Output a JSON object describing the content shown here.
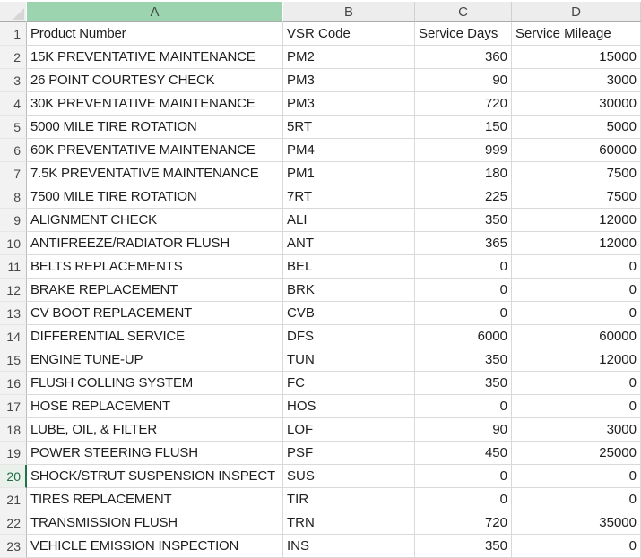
{
  "app_type": "spreadsheet",
  "colors": {
    "accent_green": "#217346",
    "selected_column_header_fill": "#9CD4AF",
    "selected_column_header_text": "#3C4A40",
    "selected_row_header_fill": "#EAF1EB",
    "selected_row_number": "#1E7044",
    "column_header_fill": "#EDEDED",
    "row_header_fill": "#F2F2F2",
    "gridline": "#D9D9D9",
    "cell_text": "#1E1E1E"
  },
  "sheet": {
    "column_headers": [
      "A",
      "B",
      "C",
      "D"
    ],
    "selection": {
      "active_cell": "A20",
      "selected_column": "A",
      "selected_row": "20"
    },
    "rows": [
      {
        "num": "1",
        "header": true,
        "product": "Product Number",
        "code": "VSR Code",
        "days": "Service Days",
        "mileage": "Service Mileage"
      },
      {
        "num": "2",
        "product": "15K PREVENTATIVE MAINTENANCE",
        "code": "PM2",
        "days": "360",
        "mileage": "15000"
      },
      {
        "num": "3",
        "product": "26 POINT COURTESY CHECK",
        "code": "PM3",
        "days": "90",
        "mileage": "3000"
      },
      {
        "num": "4",
        "product": "30K PREVENTATIVE MAINTENANCE",
        "code": "PM3",
        "days": "720",
        "mileage": "30000"
      },
      {
        "num": "5",
        "product": "5000 MILE TIRE ROTATION",
        "code": "5RT",
        "days": "150",
        "mileage": "5000"
      },
      {
        "num": "6",
        "product": "60K PREVENTATIVE MAINTENANCE",
        "code": "PM4",
        "days": "999",
        "mileage": "60000"
      },
      {
        "num": "7",
        "product": "7.5K PREVENTATIVE MAINTENANCE",
        "code": "PM1",
        "days": "180",
        "mileage": "7500"
      },
      {
        "num": "8",
        "product": "7500 MILE TIRE ROTATION",
        "code": "7RT",
        "days": "225",
        "mileage": "7500"
      },
      {
        "num": "9",
        "product": "ALIGNMENT CHECK",
        "code": "ALI",
        "days": "350",
        "mileage": "12000"
      },
      {
        "num": "10",
        "product": "ANTIFREEZE/RADIATOR FLUSH",
        "code": "ANT",
        "days": "365",
        "mileage": "12000"
      },
      {
        "num": "11",
        "product": "BELTS REPLACEMENTS",
        "code": "BEL",
        "days": "0",
        "mileage": "0"
      },
      {
        "num": "12",
        "product": "BRAKE REPLACEMENT",
        "code": "BRK",
        "days": "0",
        "mileage": "0"
      },
      {
        "num": "13",
        "product": "CV BOOT REPLACEMENT",
        "code": "CVB",
        "days": "0",
        "mileage": "0"
      },
      {
        "num": "14",
        "product": "DIFFERENTIAL SERVICE",
        "code": "DFS",
        "days": "6000",
        "mileage": "60000"
      },
      {
        "num": "15",
        "product": "ENGINE TUNE-UP",
        "code": "TUN",
        "days": "350",
        "mileage": "12000"
      },
      {
        "num": "16",
        "product": "FLUSH COLLING SYSTEM",
        "code": "FC",
        "days": "350",
        "mileage": "0"
      },
      {
        "num": "17",
        "product": "HOSE REPLACEMENT",
        "code": "HOS",
        "days": "0",
        "mileage": "0"
      },
      {
        "num": "18",
        "product": "LUBE, OIL, & FILTER",
        "code": "LOF",
        "days": "90",
        "mileage": "3000"
      },
      {
        "num": "19",
        "product": "POWER STEERING FLUSH",
        "code": "PSF",
        "days": "450",
        "mileage": "25000"
      },
      {
        "num": "20",
        "product": "SHOCK/STRUT SUSPENSION INSPECT",
        "code": "SUS",
        "days": "0",
        "mileage": "0"
      },
      {
        "num": "21",
        "product": "TIRES REPLACEMENT",
        "code": "TIR",
        "days": "0",
        "mileage": "0"
      },
      {
        "num": "22",
        "product": "TRANSMISSION FLUSH",
        "code": "TRN",
        "days": "720",
        "mileage": "35000"
      },
      {
        "num": "23",
        "product": "VEHICLE EMISSION INSPECTION",
        "code": "INS",
        "days": "350",
        "mileage": "0"
      }
    ]
  }
}
